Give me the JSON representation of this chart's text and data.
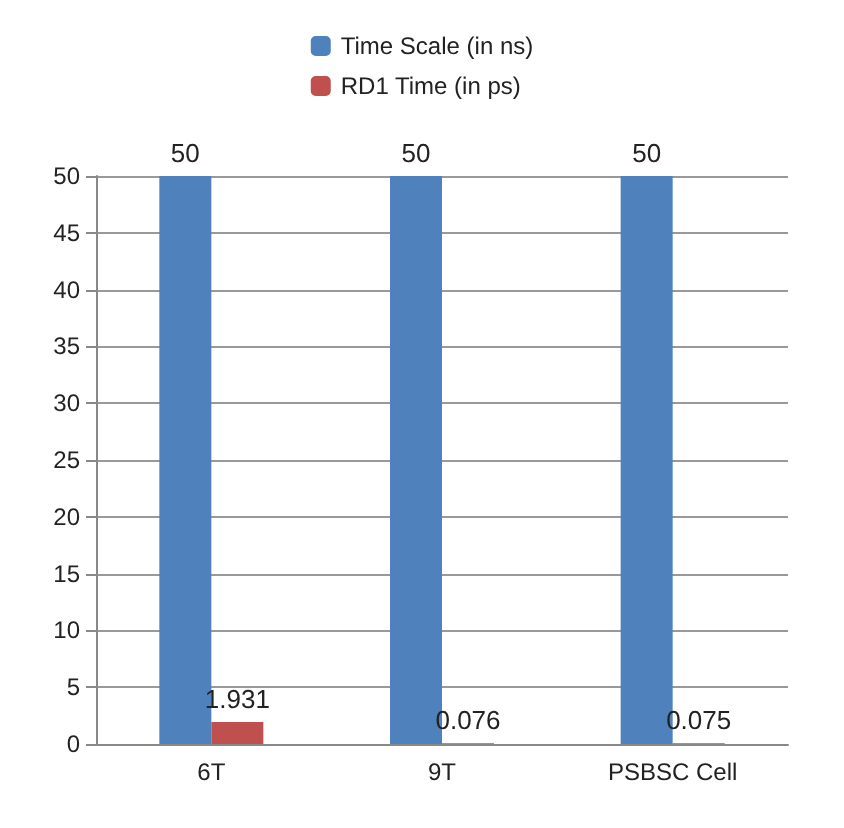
{
  "chart_data": {
    "type": "bar",
    "categories": [
      "6T",
      "9T",
      "PSBSC Cell"
    ],
    "series": [
      {
        "name": "Time Scale (in ns)",
        "color": "#4f81bd",
        "values": [
          50,
          50,
          50
        ]
      },
      {
        "name": "RD1 Time (in ps)",
        "color": "#c0504d",
        "values": [
          1.931,
          0.076,
          0.075
        ]
      }
    ],
    "ylim": [
      0,
      50
    ],
    "yticks": [
      0,
      5,
      10,
      15,
      20,
      25,
      30,
      35,
      40,
      45,
      50
    ],
    "grid": "y",
    "legend": "top",
    "data_labels": true
  }
}
